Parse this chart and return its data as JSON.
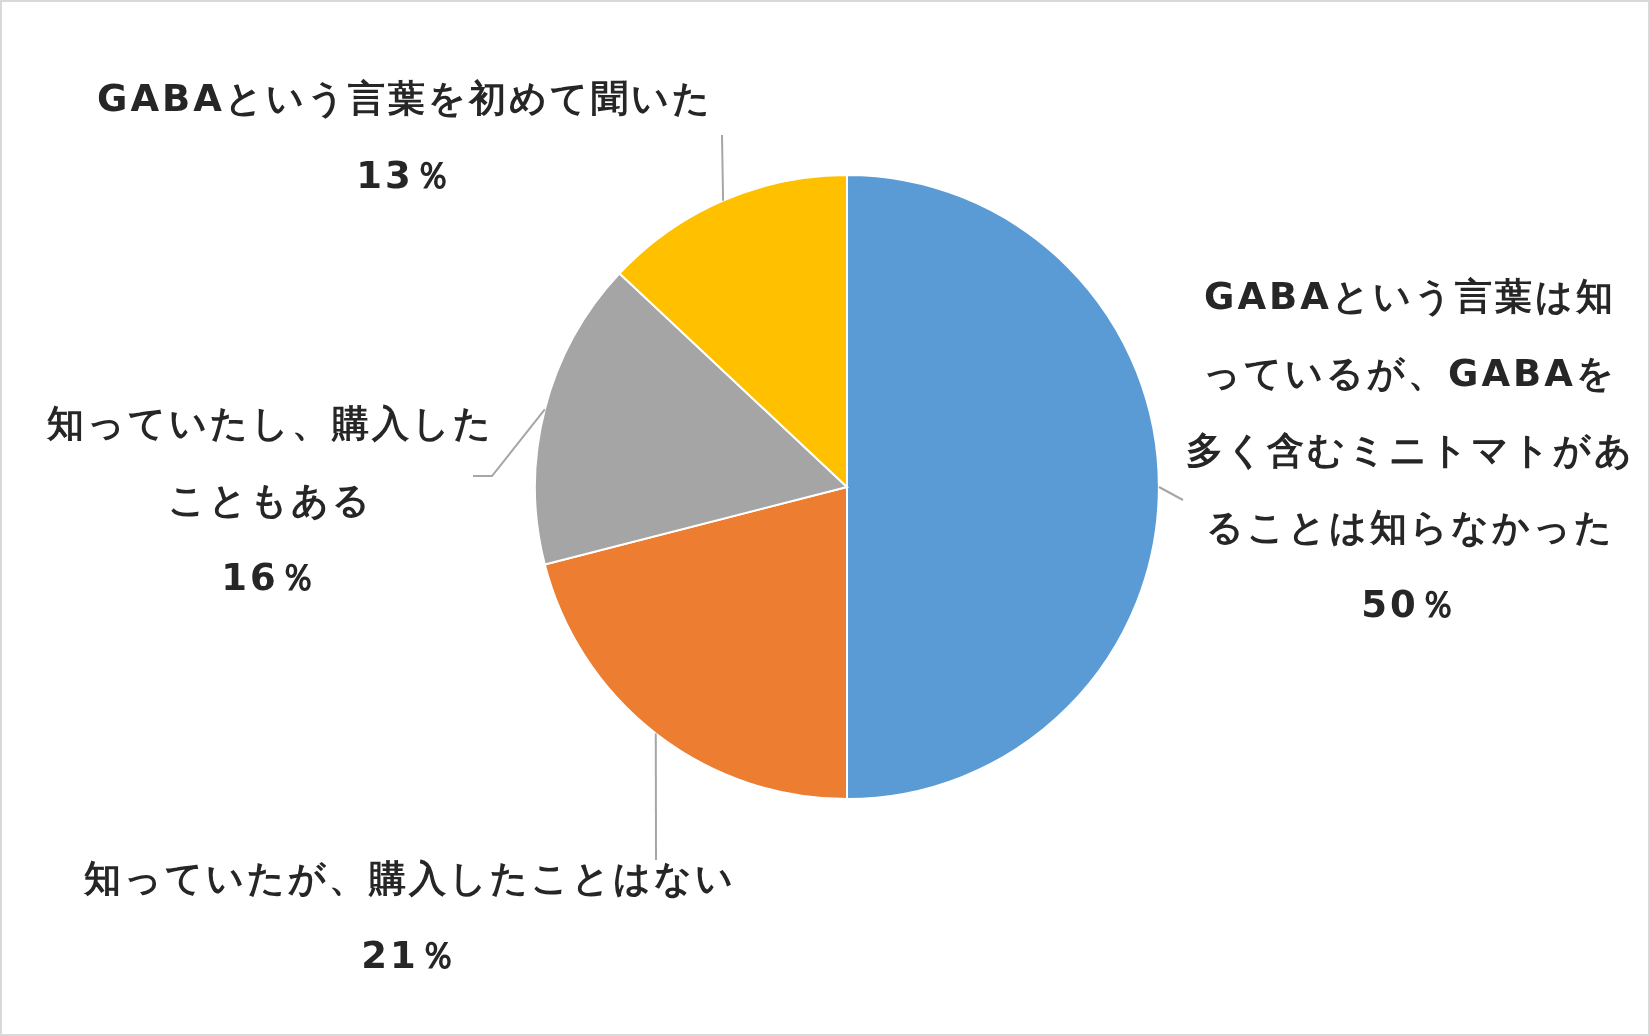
{
  "chart_data": {
    "type": "pie",
    "categories": [
      "GABAという言葉は知っているが、GABAを多く含むミニトマトがあることは知らなかった",
      "知っていたが、購入したことはない",
      "知っていたし、購入したこともある",
      "GABAという言葉を初めて聞いた"
    ],
    "values": [
      50,
      21,
      16,
      13
    ],
    "value_labels": [
      "50％",
      "21％",
      "16％",
      "13％"
    ],
    "colors": [
      "#5b9bd5",
      "#ed7d31",
      "#a5a5a5",
      "#ffc000"
    ]
  }
}
